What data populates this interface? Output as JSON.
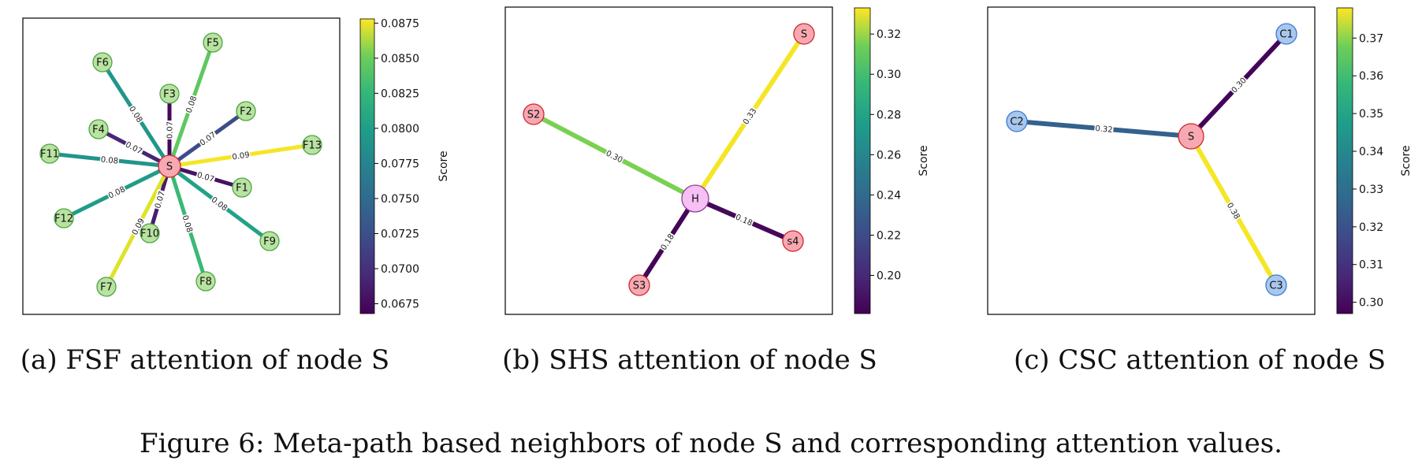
{
  "figure_caption": "Figure 6: Meta-path based neighbors of node S and corresponding attention values.",
  "colors": {
    "node_self": "#f7a8b0",
    "node_self_stroke": "#d0252f",
    "node_fsf": "#b9e3a1",
    "node_fsf_stroke": "#4ea645",
    "node_hub": "#f6c0f5",
    "node_hub_stroke": "#8b3f8f",
    "node_csc": "#a9c7ee",
    "node_csc_stroke": "#3a7bd5",
    "frame": "#000000"
  },
  "panels": [
    {
      "caption": "(a) FSF attention of node S",
      "colorbar": {
        "title": "Score",
        "min": 0.0668,
        "max": 0.0878,
        "ticks": [
          "0.0675",
          "0.0700",
          "0.0725",
          "0.0750",
          "0.0775",
          "0.0800",
          "0.0825",
          "0.0850",
          "0.0875"
        ]
      },
      "center": "S",
      "nodes": [
        {
          "id": "S",
          "type": "self"
        },
        {
          "id": "F1",
          "type": "fsf"
        },
        {
          "id": "F2",
          "type": "fsf"
        },
        {
          "id": "F3",
          "type": "fsf"
        },
        {
          "id": "F4",
          "type": "fsf"
        },
        {
          "id": "F5",
          "type": "fsf"
        },
        {
          "id": "F6",
          "type": "fsf"
        },
        {
          "id": "F7",
          "type": "fsf"
        },
        {
          "id": "F8",
          "type": "fsf"
        },
        {
          "id": "F9",
          "type": "fsf"
        },
        {
          "id": "F10",
          "type": "fsf"
        },
        {
          "id": "F11",
          "type": "fsf"
        },
        {
          "id": "F12",
          "type": "fsf"
        },
        {
          "id": "F13",
          "type": "fsf"
        }
      ],
      "edges": [
        {
          "from": "S",
          "to": "F5",
          "score": 0.0825,
          "label": "0.08"
        },
        {
          "from": "S",
          "to": "F6",
          "score": 0.0778,
          "label": "0.08"
        },
        {
          "from": "S",
          "to": "F3",
          "score": 0.0672,
          "label": "0.07"
        },
        {
          "from": "S",
          "to": "F2",
          "score": 0.0716,
          "label": "0.07"
        },
        {
          "from": "S",
          "to": "F4",
          "score": 0.069,
          "label": "0.07"
        },
        {
          "from": "S",
          "to": "F13",
          "score": 0.0875,
          "label": "0.09"
        },
        {
          "from": "S",
          "to": "F11",
          "score": 0.0776,
          "label": "0.08"
        },
        {
          "from": "S",
          "to": "F1",
          "score": 0.0678,
          "label": "0.07"
        },
        {
          "from": "S",
          "to": "F12",
          "score": 0.0783,
          "label": "0.08"
        },
        {
          "from": "S",
          "to": "F10",
          "score": 0.0685,
          "label": "0.07"
        },
        {
          "from": "S",
          "to": "F9",
          "score": 0.0788,
          "label": "0.08"
        },
        {
          "from": "S",
          "to": "F8",
          "score": 0.081,
          "label": "0.08"
        },
        {
          "from": "S",
          "to": "F7",
          "score": 0.0868,
          "label": "0.09"
        }
      ]
    },
    {
      "caption": "(b) SHS attention of node S",
      "colorbar": {
        "title": "Score",
        "min": 0.181,
        "max": 0.333,
        "ticks": [
          "0.20",
          "0.22",
          "0.24",
          "0.26",
          "0.28",
          "0.30",
          "0.32"
        ]
      },
      "center": "H",
      "nodes": [
        {
          "id": "H",
          "type": "hub"
        },
        {
          "id": "S",
          "type": "self"
        },
        {
          "id": "S2",
          "type": "self"
        },
        {
          "id": "S3",
          "type": "self"
        },
        {
          "id": "s4",
          "type": "self"
        }
      ],
      "edges": [
        {
          "from": "H",
          "to": "S",
          "score": 0.331,
          "label": "0.33"
        },
        {
          "from": "H",
          "to": "S2",
          "score": 0.302,
          "label": "0.30"
        },
        {
          "from": "H",
          "to": "S3",
          "score": 0.183,
          "label": "0.18"
        },
        {
          "from": "H",
          "to": "s4",
          "score": 0.184,
          "label": "0.18"
        }
      ]
    },
    {
      "caption": "(c) CSC attention of node S",
      "colorbar": {
        "title": "Score",
        "min": 0.297,
        "max": 0.378,
        "ticks": [
          "0.30",
          "0.31",
          "0.32",
          "0.33",
          "0.34",
          "0.35",
          "0.36",
          "0.37"
        ]
      },
      "center": "S",
      "nodes": [
        {
          "id": "S",
          "type": "self"
        },
        {
          "id": "C1",
          "type": "csc"
        },
        {
          "id": "C2",
          "type": "csc"
        },
        {
          "id": "C3",
          "type": "csc"
        }
      ],
      "edges": [
        {
          "from": "S",
          "to": "C1",
          "score": 0.298,
          "label": "0.30"
        },
        {
          "from": "S",
          "to": "C2",
          "score": 0.322,
          "label": "0.32"
        },
        {
          "from": "S",
          "to": "C3",
          "score": 0.377,
          "label": "0.38"
        }
      ]
    }
  ]
}
